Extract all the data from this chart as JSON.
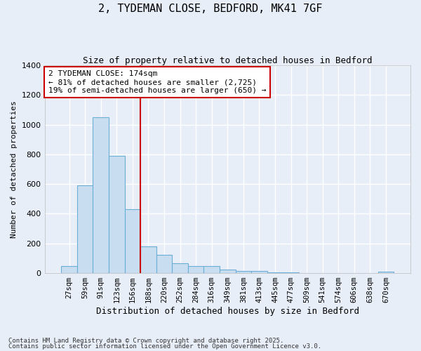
{
  "title_line1": "2, TYDEMAN CLOSE, BEDFORD, MK41 7GF",
  "title_line2": "Size of property relative to detached houses in Bedford",
  "xlabel": "Distribution of detached houses by size in Bedford",
  "ylabel": "Number of detached properties",
  "categories": [
    "27sqm",
    "59sqm",
    "91sqm",
    "123sqm",
    "156sqm",
    "188sqm",
    "220sqm",
    "252sqm",
    "284sqm",
    "316sqm",
    "349sqm",
    "381sqm",
    "413sqm",
    "445sqm",
    "477sqm",
    "509sqm",
    "541sqm",
    "574sqm",
    "606sqm",
    "638sqm",
    "670sqm"
  ],
  "values": [
    50,
    590,
    1050,
    790,
    430,
    180,
    125,
    65,
    50,
    50,
    25,
    15,
    15,
    5,
    5,
    0,
    0,
    0,
    0,
    0,
    10
  ],
  "bar_color": "#c8ddf0",
  "bar_edge_color": "#6baed6",
  "bg_color": "#e8eef8",
  "fig_bg_color": "#e8eef8",
  "grid_color": "#ffffff",
  "vline_color": "#cc0000",
  "vline_x_index": 5,
  "annotation_text": "2 TYDEMAN CLOSE: 174sqm\n← 81% of detached houses are smaller (2,725)\n19% of semi-detached houses are larger (650) →",
  "annotation_box_edgecolor": "#cc0000",
  "ylim": [
    0,
    1400
  ],
  "yticks": [
    0,
    200,
    400,
    600,
    800,
    1000,
    1200,
    1400
  ],
  "footnote1": "Contains HM Land Registry data © Crown copyright and database right 2025.",
  "footnote2": "Contains public sector information licensed under the Open Government Licence v3.0."
}
